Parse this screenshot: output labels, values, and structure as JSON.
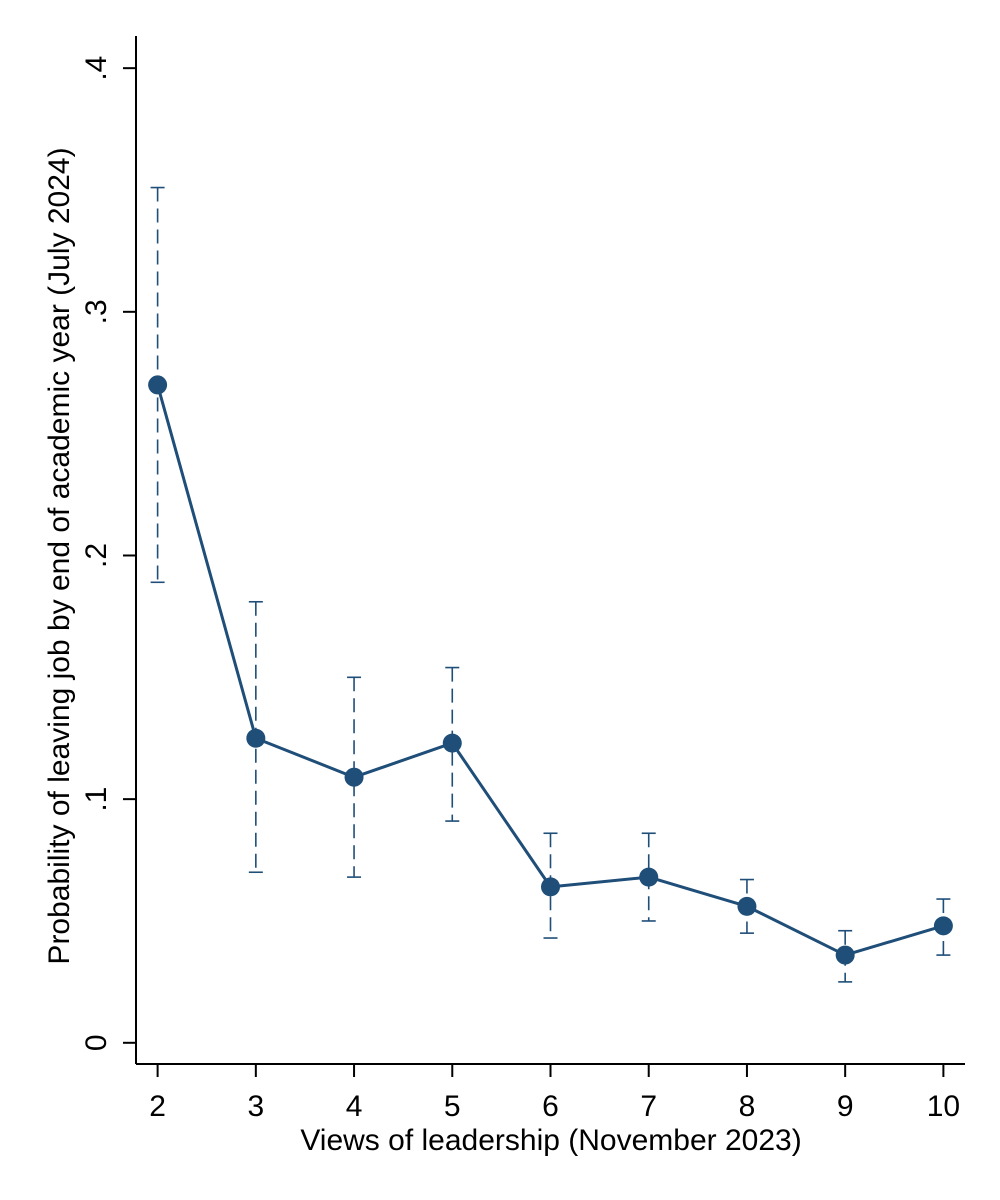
{
  "chart_data": {
    "type": "line",
    "title": "",
    "xlabel": "Views of leadership (November 2023)",
    "ylabel": "Probability of leaving job by end of academic year (July 2024)",
    "xlim": [
      1.78,
      10.22
    ],
    "ylim": [
      -0.0087,
      0.4132
    ],
    "x_ticks": [
      2,
      3,
      4,
      5,
      6,
      7,
      8,
      9,
      10
    ],
    "x_tick_labels": [
      "2",
      "3",
      "4",
      "5",
      "6",
      "7",
      "8",
      "9",
      "10"
    ],
    "y_ticks": [
      0,
      0.1,
      0.2,
      0.3,
      0.4
    ],
    "y_tick_labels": [
      "0",
      ".1",
      ".2",
      ".3",
      ".4"
    ],
    "grid": false,
    "series": [
      {
        "name": "Probability of leaving job",
        "color": "#1f4e79",
        "x": [
          2,
          3,
          4,
          5,
          6,
          7,
          8,
          9,
          10
        ],
        "values": [
          0.27,
          0.125,
          0.109,
          0.123,
          0.064,
          0.068,
          0.056,
          0.036,
          0.048
        ],
        "ci_lower": [
          0.189,
          0.07,
          0.068,
          0.091,
          0.043,
          0.05,
          0.045,
          0.025,
          0.036
        ],
        "ci_upper": [
          0.351,
          0.181,
          0.15,
          0.154,
          0.086,
          0.086,
          0.067,
          0.046,
          0.059
        ]
      }
    ]
  }
}
